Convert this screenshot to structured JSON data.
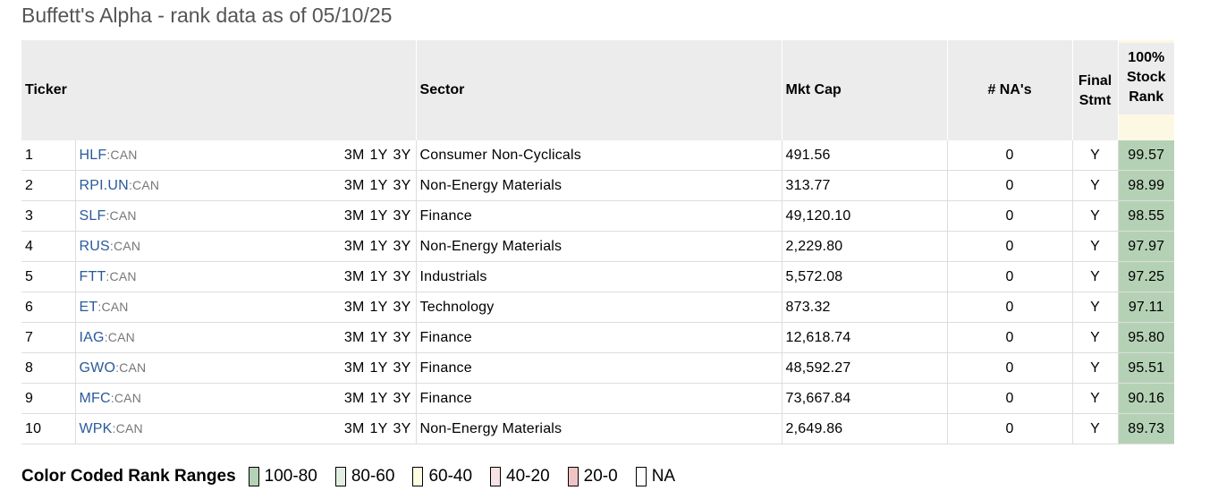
{
  "title": "Buffett's Alpha - rank data as of 05/10/25",
  "headers": {
    "ticker": "Ticker",
    "sector": "Sector",
    "mktcap": "Mkt Cap",
    "nas": "# NA's",
    "final_line1": "Final",
    "final_line2": "Stmt",
    "rank_line1": "100%",
    "rank_line2": "Stock",
    "rank_line3": "Rank"
  },
  "period_links": [
    "3M",
    "1Y",
    "3Y"
  ],
  "rows": [
    {
      "num": "1",
      "ticker": "HLF",
      "exch": ":CAN",
      "sector": "Consumer Non-Cyclicals",
      "mktcap": "491.56",
      "nas": "0",
      "final": "Y",
      "rank": "99.57"
    },
    {
      "num": "2",
      "ticker": "RPI.UN",
      "exch": ":CAN",
      "sector": "Non-Energy Materials",
      "mktcap": "313.77",
      "nas": "0",
      "final": "Y",
      "rank": "98.99"
    },
    {
      "num": "3",
      "ticker": "SLF",
      "exch": ":CAN",
      "sector": "Finance",
      "mktcap": "49,120.10",
      "nas": "0",
      "final": "Y",
      "rank": "98.55"
    },
    {
      "num": "4",
      "ticker": "RUS",
      "exch": ":CAN",
      "sector": "Non-Energy Materials",
      "mktcap": "2,229.80",
      "nas": "0",
      "final": "Y",
      "rank": "97.97"
    },
    {
      "num": "5",
      "ticker": "FTT",
      "exch": ":CAN",
      "sector": "Industrials",
      "mktcap": "5,572.08",
      "nas": "0",
      "final": "Y",
      "rank": "97.25"
    },
    {
      "num": "6",
      "ticker": "ET",
      "exch": ":CAN",
      "sector": "Technology",
      "mktcap": "873.32",
      "nas": "0",
      "final": "Y",
      "rank": "97.11"
    },
    {
      "num": "7",
      "ticker": "IAG",
      "exch": ":CAN",
      "sector": "Finance",
      "mktcap": "12,618.74",
      "nas": "0",
      "final": "Y",
      "rank": "95.80"
    },
    {
      "num": "8",
      "ticker": "GWO",
      "exch": ":CAN",
      "sector": "Finance",
      "mktcap": "48,592.27",
      "nas": "0",
      "final": "Y",
      "rank": "95.51"
    },
    {
      "num": "9",
      "ticker": "MFC",
      "exch": ":CAN",
      "sector": "Finance",
      "mktcap": "73,667.84",
      "nas": "0",
      "final": "Y",
      "rank": "90.16"
    },
    {
      "num": "10",
      "ticker": "WPK",
      "exch": ":CAN",
      "sector": "Non-Energy Materials",
      "mktcap": "2,649.86",
      "nas": "0",
      "final": "Y",
      "rank": "89.73"
    }
  ],
  "legend": {
    "title": "Color Coded Rank Ranges",
    "items": [
      {
        "label": "100-80",
        "color": "#b5d1b5"
      },
      {
        "label": "80-60",
        "color": "#e3eee3"
      },
      {
        "label": "60-40",
        "color": "#fdfde3"
      },
      {
        "label": "40-20",
        "color": "#f7e3e3"
      },
      {
        "label": "20-0",
        "color": "#f0c4c4"
      },
      {
        "label": "NA",
        "color": "#ffffff"
      }
    ]
  },
  "colors": {
    "rank_fill": "#b5d1b5",
    "ticker_link": "#2a5a9a",
    "header_bg": "#ececec",
    "rank_header_bg": "#fcf8e3"
  }
}
